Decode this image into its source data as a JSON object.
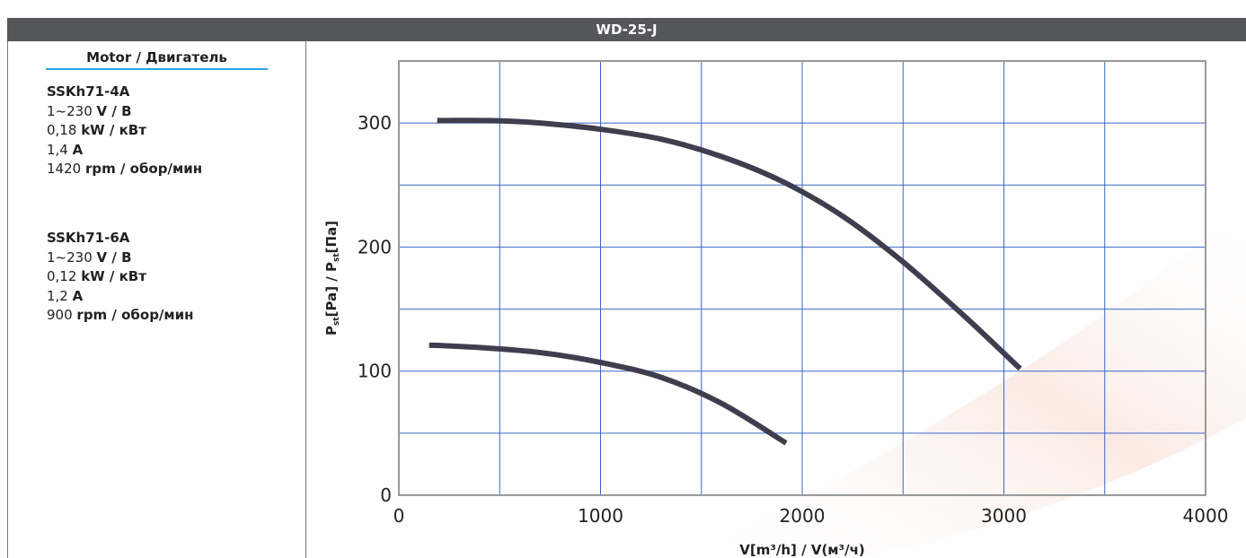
{
  "title": "WD-25-J",
  "motor_heading": "Motor / Двигатель",
  "motors": [
    {
      "name": "SSKh71-4A",
      "voltage": "1~230",
      "voltage_unit": "V / В",
      "power": "0,18",
      "power_unit": "kW / кВт",
      "current": "1,4",
      "current_unit": "A",
      "speed": "1420",
      "speed_unit": "rpm / обор/мин"
    },
    {
      "name": "SSKh71-6A",
      "voltage": "1~230",
      "voltage_unit": "V / В",
      "power": "0,12",
      "power_unit": "kW / кВт",
      "current": "1,2",
      "current_unit": "A",
      "speed": "900",
      "speed_unit": "rpm / обор/мин"
    }
  ],
  "colors": {
    "title_bar": "#55565a",
    "grid": "#3a66c8",
    "frame": "#999999",
    "curve": "#3f3e4e",
    "heading_underline": "#2ea6de"
  },
  "chart_data": {
    "type": "line",
    "title": "WD-25-J",
    "xlabel": "V[m³/h] / V(м³/ч)",
    "ylabel_parts": {
      "p1": "P",
      "s1": "st",
      "u1": "[Pa] / ",
      "p2": "P",
      "s2": "st",
      "u2": "[Па]"
    },
    "xlim": [
      0,
      4000
    ],
    "ylim": [
      0,
      350
    ],
    "x_ticks": [
      0,
      1000,
      2000,
      3000,
      4000
    ],
    "y_ticks": [
      0,
      100,
      200,
      300
    ],
    "grid": true,
    "series": [
      {
        "x": [
          190,
          450,
          700,
          1000,
          1300,
          1600,
          1900,
          2200,
          2500,
          2800,
          3080
        ],
        "y": [
          302,
          302,
          300,
          295,
          287,
          273,
          253,
          225,
          188,
          145,
          102
        ]
      },
      {
        "x": [
          150,
          400,
          700,
          1000,
          1300,
          1600,
          1920
        ],
        "y": [
          121,
          119,
          115,
          107,
          95,
          74,
          42
        ]
      }
    ]
  }
}
